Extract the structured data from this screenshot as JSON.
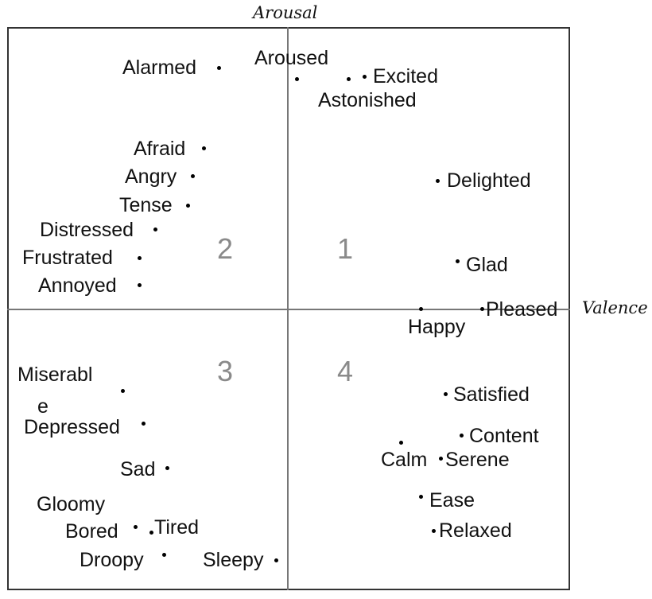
{
  "axes": {
    "y_title": "Arousal",
    "x_title": "Valence"
  },
  "quadrants": [
    "1",
    "2",
    "3",
    "4"
  ],
  "emotions": [
    "Alarmed",
    "Aroused",
    "Excited",
    "Astonished",
    "Afraid",
    "Angry",
    "Tense",
    "Distressed",
    "Frustrated",
    "Annoyed",
    "Delighted",
    "Glad",
    "Pleased",
    "Happy",
    "Miserabl",
    "e",
    "Depressed",
    "Sad",
    "Gloomy",
    "Bored",
    "Tired",
    "Droopy",
    "Sleepy",
    "Satisfied",
    "Content",
    "Calm",
    "Serene",
    "Ease",
    "Relaxed"
  ]
}
